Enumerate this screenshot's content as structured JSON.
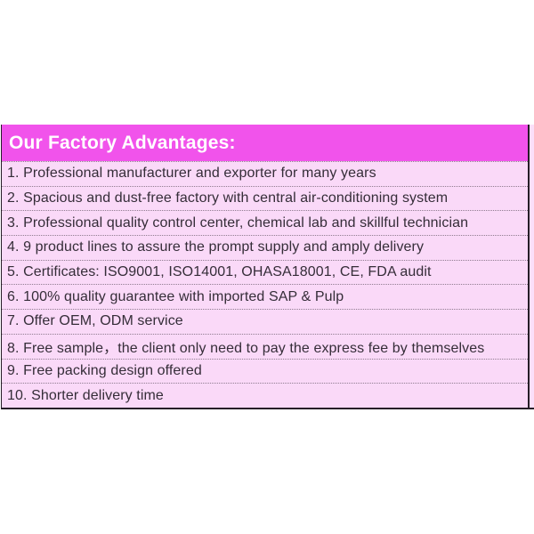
{
  "advantages_table": {
    "title": "Our Factory Advantages:",
    "rows": [
      "1. Professional manufacturer and exporter for many years",
      "2. Spacious and dust-free factory with central air-conditioning system",
      "3. Professional quality control center, chemical lab and skillful technician",
      "4. 9 product lines to assure the prompt supply and amply delivery",
      "5. Certificates: ISO9001, ISO14001, OHASA18001, CE, FDA audit",
      "6. 100% quality guarantee with imported SAP & Pulp",
      "7. Offer OEM, ODM service",
      "8. Free sample，the client only need to pay the express fee by themselves",
      "9. Free packing design offered",
      "10. Shorter delivery time"
    ],
    "colors": {
      "page_background": "#ffffff",
      "header_background": "#f153eb",
      "header_text": "#ffffff",
      "row_background": "#fad9f8",
      "row_text": "#352d38",
      "row_divider": "#907c90",
      "table_outline": "#261e28",
      "right_edge_strip": "#fbdff9"
    }
  }
}
